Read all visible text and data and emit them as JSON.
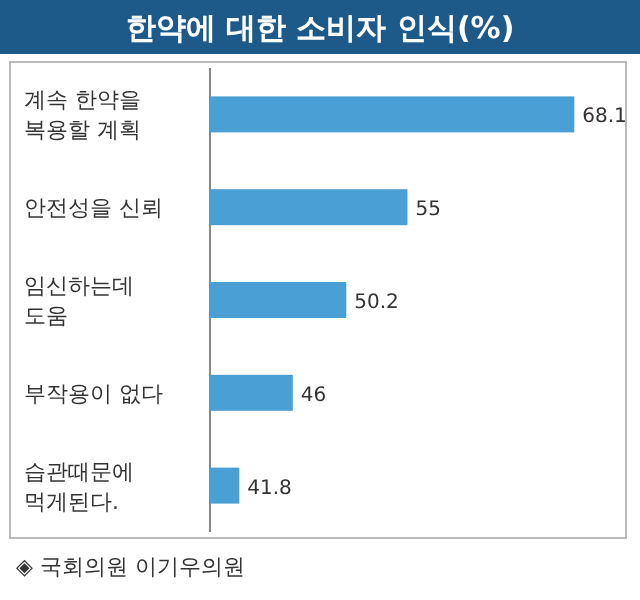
{
  "chart_data": {
    "type": "bar",
    "orientation": "horizontal",
    "title": "한약에 대한 소비자 인식(%)",
    "categories": [
      "계속 한약을 복용할 계획",
      "안전성을 신뢰",
      "임신하는데 도움",
      "부작용이 없다",
      "습관때문에 먹게된다."
    ],
    "values": [
      68.1,
      55,
      50.2,
      46,
      41.8
    ],
    "color": "#4a9fd4",
    "xlim": [
      39.5,
      72
    ],
    "data_labels": true,
    "annotations": [
      "◈ 국회의원 이기우의원"
    ]
  }
}
